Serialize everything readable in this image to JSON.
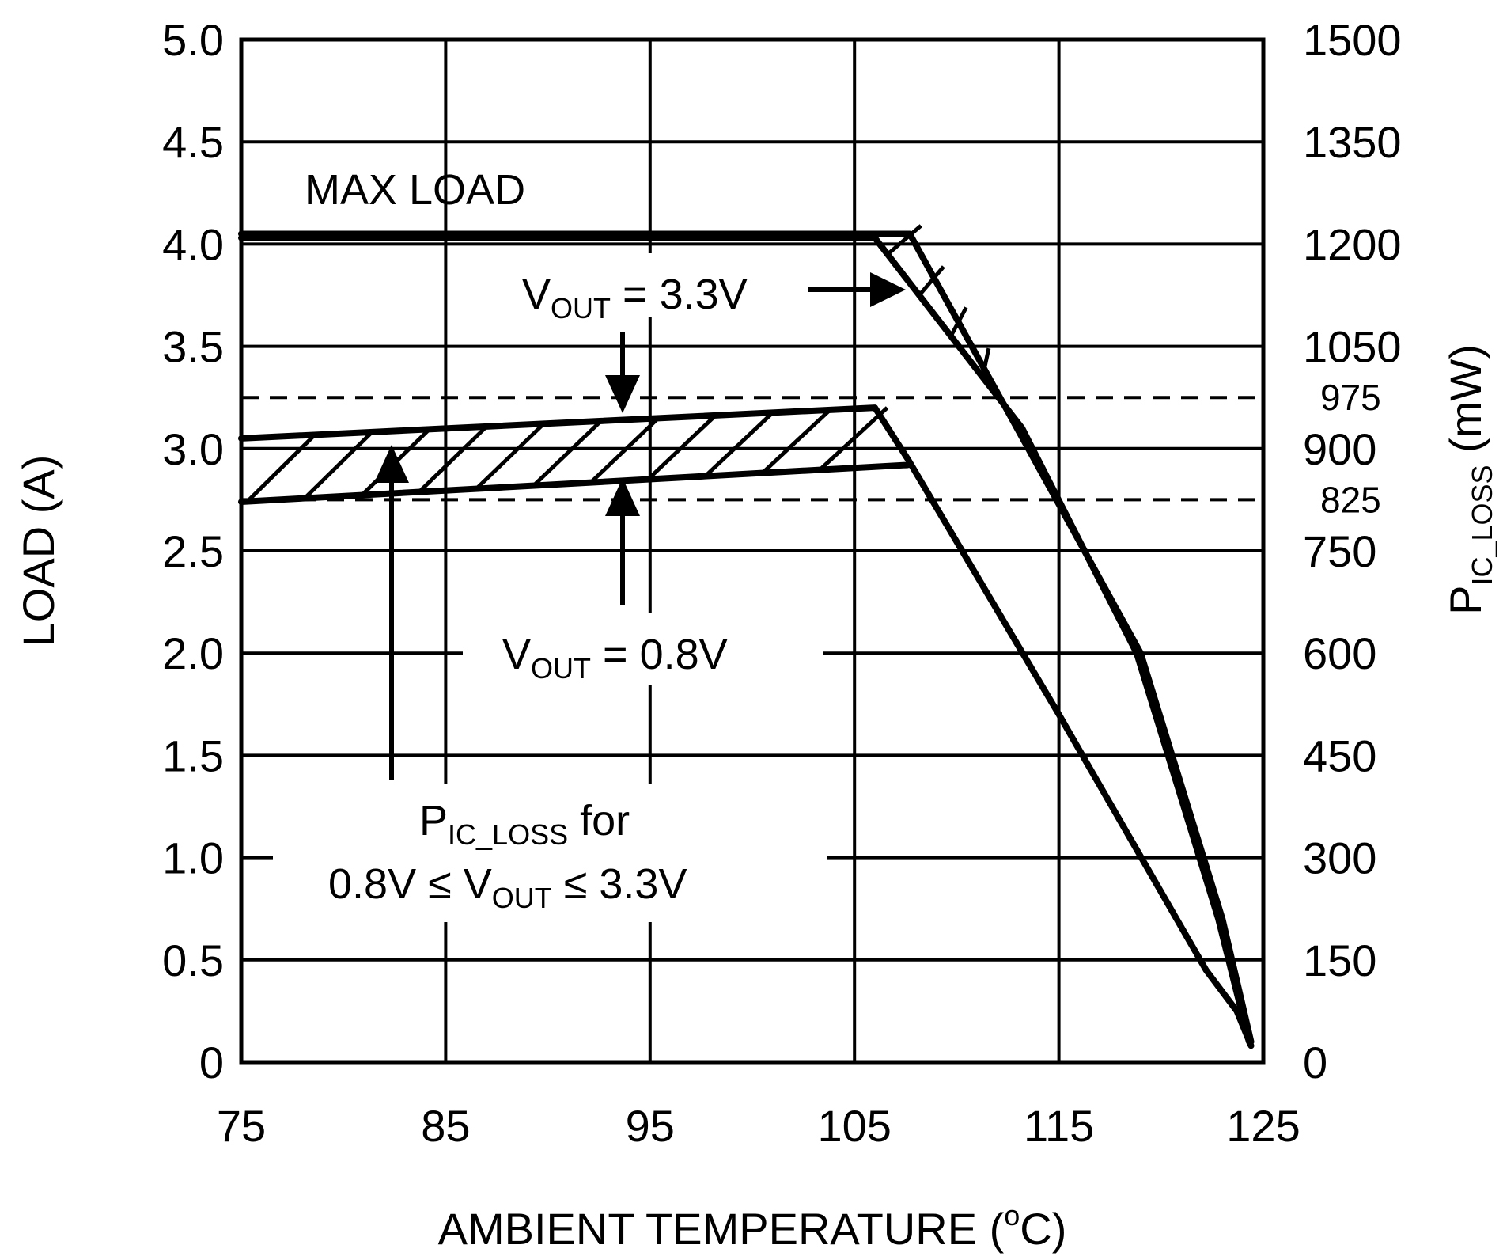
{
  "chart_data": {
    "type": "line",
    "title": "",
    "xlabel": "AMBIENT TEMPERATURE (°C)",
    "xlabel_parts": {
      "pre": "AMBIENT TEMPERATURE (",
      "sup": "o",
      "post": "C)"
    },
    "ylabel": "LOAD (A)",
    "y2label": "P_IC_LOSS (mW)",
    "y2label_parts": {
      "main": "P",
      "sub": "IC_LOSS",
      "unit": " (mW)"
    },
    "xlim": [
      75,
      125
    ],
    "ylim": [
      0,
      5
    ],
    "y2lim": [
      0,
      1500
    ],
    "xticks": [
      75,
      85,
      95,
      105,
      115,
      125
    ],
    "xtick_labels": [
      "75",
      "85",
      "95",
      "105",
      "115",
      "125"
    ],
    "yticks": [
      0,
      0.5,
      1.0,
      1.5,
      2.0,
      2.5,
      3.0,
      3.5,
      4.0,
      4.5,
      5.0
    ],
    "ytick_labels": [
      "0",
      "0.5",
      "1.0",
      "1.5",
      "2.0",
      "2.5",
      "3.0",
      "3.5",
      "4.0",
      "4.5",
      "5.0"
    ],
    "y2ticks": [
      0,
      150,
      300,
      450,
      600,
      750,
      900,
      1050,
      1200,
      1350,
      1500
    ],
    "y2tick_labels": [
      "0",
      "150",
      "300",
      "450",
      "600",
      "750",
      "900",
      "1050",
      "1200",
      "1350",
      "1500"
    ],
    "y2extra_ticks": [
      825,
      975
    ],
    "y2extra_labels": [
      "825",
      "975"
    ],
    "grid": true,
    "series": [
      {
        "name": "Max load, VOUT = 3.3V",
        "x": [
          75,
          107.7,
          113.5,
          119,
          123,
          124.4
        ],
        "y": [
          4.05,
          4.05,
          3.0,
          2.0,
          0.7,
          0.1
        ]
      },
      {
        "name": "Max load, VOUT = 0.8V",
        "x": [
          75,
          106,
          113.2,
          118.8,
          122.8,
          124.3
        ],
        "y": [
          4.03,
          4.03,
          3.1,
          2.0,
          0.7,
          0.1
        ]
      },
      {
        "name": "P_IC_LOSS, VOUT = 3.3V",
        "x": [
          75,
          106,
          107.6,
          115,
          122.2,
          123.7,
          124.4
        ],
        "y": [
          3.05,
          3.2,
          2.95,
          1.7,
          0.45,
          0.25,
          0.08
        ]
      },
      {
        "name": "P_IC_LOSS, VOUT = 0.8V",
        "x": [
          75,
          107.6
        ],
        "y": [
          2.74,
          2.92
        ]
      }
    ],
    "reference_lines": [
      {
        "axis": "y2",
        "value": 975,
        "style": "dashed"
      },
      {
        "axis": "y2",
        "value": 825,
        "style": "dashed"
      }
    ],
    "annotations": [
      {
        "text": "MAX LOAD"
      },
      {
        "text_main": "V",
        "text_sub": "OUT",
        "text_post": " = 3.3V"
      },
      {
        "text_main": "V",
        "text_sub": "OUT",
        "text_post": " = 0.8V"
      },
      {
        "line1_main": "P",
        "line1_sub": "IC_LOSS",
        "line1_post": " for",
        "line2_pre": "0.8V ≤ V",
        "line2_sub": "OUT",
        "line2_post": " ≤ 3.3V"
      }
    ]
  }
}
